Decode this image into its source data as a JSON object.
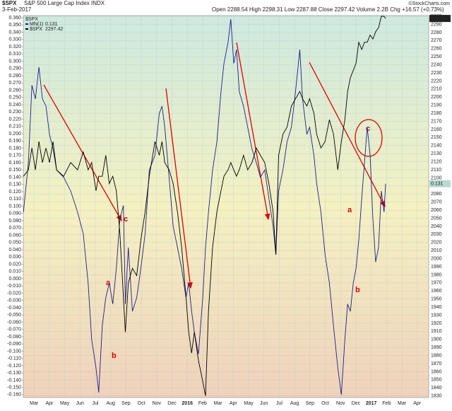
{
  "chart_data": {
    "type": "line",
    "title": "$SPX",
    "subtitle": "S&P 500 Large Cap Index INDX",
    "date": "3-Feb-2017",
    "quote": "Open 2288.54 High 2298.31 Low 2287.88 Close 2297.42 Volume 2.2B Chg +16.57 (+0.73%)",
    "source": "©StockCharts.com",
    "legend_title": "$SPX",
    "annotations": [
      "c",
      "a",
      "b",
      "c",
      "a",
      "b"
    ],
    "grid": true,
    "x": [
      -0.69,
      -0.37,
      -0.14,
      0.09,
      0.32,
      0.55,
      0.78,
      1.01,
      1.24,
      1.47,
      1.93,
      2.39,
      2.84,
      3.21,
      3.53,
      3.76,
      4.04,
      4.22,
      4.45,
      4.68,
      4.91,
      5.14,
      5.37,
      5.6,
      5.83,
      5.96,
      6.15,
      6.42,
      6.7,
      6.97,
      7.25,
      7.52,
      7.89,
      8.17,
      8.35,
      8.53,
      8.81,
      9.08,
      9.36,
      9.63,
      9.91,
      10.09,
      10.28,
      10.46,
      10.73,
      11.01,
      11.19,
      11.38,
      11.65,
      11.93,
      12.2,
      12.39,
      12.66,
      12.84,
      13.03,
      13.21,
      13.39,
      13.67,
      13.94,
      14.22,
      14.5,
      14.77,
      15.05,
      15.32,
      15.6,
      15.78,
      15.96,
      16.24,
      16.51,
      16.79,
      17.06,
      17.34,
      17.52,
      17.8,
      17.98,
      18.26,
      18.44,
      18.72,
      18.99,
      19.27,
      19.54,
      19.82,
      20.05,
      20.28,
      20.46,
      20.64,
      20.83,
      21.01,
      21.19,
      21.38,
      21.56,
      21.74,
      21.93,
      22.11,
      22.29,
      22.48,
      22.66,
      22.84,
      22.94
    ],
    "series": [
      {
        "name": "MN(1)",
        "color": "#1e1e8c",
        "axis": "y",
        "last_label": "0.131",
        "values": [
          0.092,
          0.16,
          0.267,
          0.248,
          0.292,
          0.248,
          0.238,
          0.199,
          0.179,
          0.15,
          0.14,
          0.121,
          0.092,
          0.062,
          -0.006,
          -0.084,
          -0.123,
          -0.157,
          -0.065,
          -0.026,
          -0.006,
          -0.035,
          0.014,
          0.082,
          0.101,
          -0.035,
          0.043,
          -0.045,
          -0.026,
          0.014,
          0.062,
          0.15,
          0.17,
          0.228,
          0.238,
          0.209,
          0.14,
          0.072,
          0.043,
          0.014,
          -0.026,
          -0.006,
          -0.045,
          -0.074,
          -0.104,
          -0.026,
          0.043,
          0.092,
          0.15,
          0.189,
          0.258,
          0.297,
          0.326,
          0.358,
          0.297,
          0.316,
          0.258,
          0.238,
          0.209,
          0.179,
          0.16,
          0.14,
          0.15,
          0.111,
          0.072,
          0.033,
          0.121,
          0.15,
          0.189,
          0.209,
          0.258,
          0.316,
          0.248,
          0.199,
          0.209,
          0.17,
          0.131,
          0.092,
          0.033,
          -0.006,
          -0.065,
          -0.123,
          -0.16,
          -0.084,
          -0.035,
          -0.045,
          -0.006,
          0.014,
          0.053,
          0.111,
          0.16,
          0.209,
          0.17,
          0.082,
          0.023,
          0.043,
          0.121,
          0.092,
          0.131
        ]
      },
      {
        "name": "$SPX",
        "color": "#000000",
        "axis": "y2",
        "last_label": "2297.42",
        "values": [
          2102,
          2110,
          2137,
          2110,
          2145,
          2119,
          2137,
          2119,
          2145,
          2110,
          2102,
          2119,
          2110,
          2132,
          2110,
          2119,
          2084,
          2102,
          2102,
          2128,
          2093,
          2102,
          2084,
          2032,
          1953,
          1909,
          1970,
          1988,
          1979,
          2023,
          2058,
          2102,
          2145,
          2128,
          2145,
          2119,
          2110,
          2093,
          2058,
          2014,
          1953,
          1909,
          1883,
          1909,
          1874,
          1848,
          1830,
          1935,
          2014,
          2058,
          2084,
          2102,
          2110,
          2119,
          2110,
          2102,
          2110,
          2128,
          2110,
          2119,
          2137,
          2128,
          2119,
          2093,
          2058,
          2005,
          2128,
          2154,
          2163,
          2189,
          2198,
          2207,
          2198,
          2189,
          2198,
          2180,
          2154,
          2137,
          2145,
          2172,
          2154,
          2110,
          2145,
          2172,
          2207,
          2224,
          2233,
          2242,
          2268,
          2259,
          2268,
          2268,
          2277,
          2272,
          2281,
          2286,
          2300,
          2300,
          2297.42
        ]
      }
    ],
    "xlim": [
      -0.7,
      25.75
    ],
    "xticks": [
      {
        "value": 0,
        "label": "Mar"
      },
      {
        "value": 1,
        "label": "Apr"
      },
      {
        "value": 2,
        "label": "May"
      },
      {
        "value": 3,
        "label": "Jun"
      },
      {
        "value": 4,
        "label": "Jul"
      },
      {
        "value": 5,
        "label": "Aug"
      },
      {
        "value": 6,
        "label": "Sep"
      },
      {
        "value": 7,
        "label": "Oct"
      },
      {
        "value": 8,
        "label": "Nov"
      },
      {
        "value": 9,
        "label": "Dec"
      },
      {
        "value": 10,
        "label": "2016"
      },
      {
        "value": 11,
        "label": "Feb"
      },
      {
        "value": 12,
        "label": "Mar"
      },
      {
        "value": 13,
        "label": "Apr"
      },
      {
        "value": 14,
        "label": "May"
      },
      {
        "value": 15,
        "label": "Jun"
      },
      {
        "value": 16,
        "label": "Jul"
      },
      {
        "value": 17,
        "label": "Aug"
      },
      {
        "value": 18,
        "label": "Sep"
      },
      {
        "value": 19,
        "label": "Oct"
      },
      {
        "value": 20,
        "label": "Nov"
      },
      {
        "value": 21,
        "label": "Dec"
      },
      {
        "value": 22,
        "label": "2017"
      },
      {
        "value": 23,
        "label": "Feb"
      },
      {
        "value": 24,
        "label": "Mar"
      },
      {
        "value": 25,
        "label": "Apr"
      }
    ],
    "ylim": [
      -0.164,
      0.363
    ],
    "yticks": [
      {
        "value": 0.36,
        "label": "0.360"
      },
      {
        "value": 0.35,
        "label": "0.350"
      },
      {
        "value": 0.34,
        "label": "0.340"
      },
      {
        "value": 0.33,
        "label": "0.330"
      },
      {
        "value": 0.32,
        "label": "0.320"
      },
      {
        "value": 0.31,
        "label": "0.310"
      },
      {
        "value": 0.3,
        "label": "0.300"
      },
      {
        "value": 0.29,
        "label": "0.290"
      },
      {
        "value": 0.28,
        "label": "0.280"
      },
      {
        "value": 0.27,
        "label": "0.270"
      },
      {
        "value": 0.26,
        "label": "0.260"
      },
      {
        "value": 0.25,
        "label": "0.250"
      },
      {
        "value": 0.24,
        "label": "0.240"
      },
      {
        "value": 0.23,
        "label": "0.230"
      },
      {
        "value": 0.22,
        "label": "0.220"
      },
      {
        "value": 0.21,
        "label": "0.210"
      },
      {
        "value": 0.2,
        "label": "0.200"
      },
      {
        "value": 0.19,
        "label": "0.190"
      },
      {
        "value": 0.18,
        "label": "0.180"
      },
      {
        "value": 0.17,
        "label": "0.170"
      },
      {
        "value": 0.16,
        "label": "0.160"
      },
      {
        "value": 0.15,
        "label": "0.150"
      },
      {
        "value": 0.14,
        "label": "0.140"
      },
      {
        "value": 0.13,
        "label": "0.130"
      },
      {
        "value": 0.12,
        "label": "0.120"
      },
      {
        "value": 0.11,
        "label": "0.110"
      },
      {
        "value": 0.1,
        "label": "0.100"
      },
      {
        "value": 0.09,
        "label": "0.090"
      },
      {
        "value": 0.08,
        "label": "0.080"
      },
      {
        "value": 0.07,
        "label": "0.070"
      },
      {
        "value": 0.06,
        "label": "0.060"
      },
      {
        "value": 0.05,
        "label": "0.050"
      },
      {
        "value": 0.04,
        "label": "0.040"
      },
      {
        "value": 0.03,
        "label": "0.030"
      },
      {
        "value": 0.02,
        "label": "0.020"
      },
      {
        "value": 0.01,
        "label": "0.010"
      },
      {
        "value": 0,
        "label": "0.000"
      },
      {
        "value": -0.01,
        "label": "-0.010"
      },
      {
        "value": -0.02,
        "label": "-0.020"
      },
      {
        "value": -0.03,
        "label": "-0.030"
      },
      {
        "value": -0.04,
        "label": "-0.040"
      },
      {
        "value": -0.05,
        "label": "-0.050"
      },
      {
        "value": -0.06,
        "label": "-0.060"
      },
      {
        "value": -0.07,
        "label": "-0.070"
      },
      {
        "value": -0.08,
        "label": "-0.080"
      },
      {
        "value": -0.09,
        "label": "-0.090"
      },
      {
        "value": -0.1,
        "label": "-0.100"
      },
      {
        "value": -0.11,
        "label": "-0.110"
      },
      {
        "value": -0.12,
        "label": "-0.120"
      },
      {
        "value": -0.13,
        "label": "-0.130"
      },
      {
        "value": -0.14,
        "label": "-0.140"
      },
      {
        "value": -0.15,
        "label": "-0.150"
      },
      {
        "value": -0.16,
        "label": "-0.160"
      }
    ],
    "y2lim": [
      1828,
      2301
    ],
    "y2ticks": [
      2300,
      2290,
      2280,
      2270,
      2260,
      2250,
      2240,
      2230,
      2220,
      2210,
      2200,
      2190,
      2180,
      2170,
      2160,
      2150,
      2140,
      2130,
      2120,
      2110,
      2100,
      2090,
      2080,
      2070,
      2060,
      2050,
      2040,
      2030,
      2020,
      2010,
      2000,
      1990,
      1980,
      1970,
      1960,
      1950,
      1940,
      1930,
      1920,
      1910,
      1900,
      1890,
      1880,
      1870,
      1860,
      1850,
      1840,
      1830
    ]
  }
}
